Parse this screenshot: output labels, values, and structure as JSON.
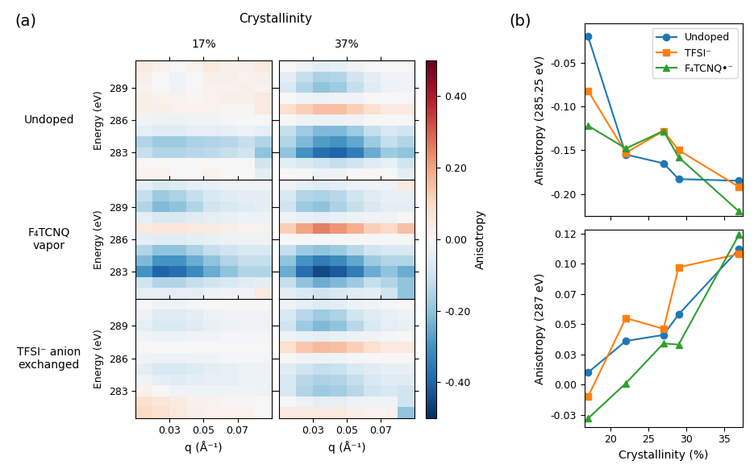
{
  "figure": {
    "panel_labels": [
      "(a)",
      "(b)"
    ]
  },
  "heatmaps": {
    "type": "heatmap",
    "header": "Crystallinity",
    "columns": [
      "17%",
      "37%"
    ],
    "rows": [
      "Undoped",
      "F₄TCNQ\nvapor",
      "TFSI⁻ anion\nexchanged"
    ],
    "x_label": "q (Å⁻¹)",
    "y_label": "Energy (eV)",
    "xlim": [
      0.01,
      0.09
    ],
    "xticks": [
      0.03,
      0.05,
      0.07
    ],
    "ylim": [
      280.5,
      291.5
    ],
    "yticks": [
      283,
      286,
      289
    ],
    "q_edges": [
      0.01,
      0.02,
      0.03,
      0.04,
      0.05,
      0.06,
      0.07,
      0.08,
      0.09
    ],
    "energy_edges": [
      280.5,
      281.5,
      282.5,
      283.5,
      284.5,
      285.5,
      286.5,
      287.5,
      288.5,
      289.5,
      290.5,
      291.5
    ],
    "colorbar": {
      "label": "Anisotropy",
      "range": [
        -0.5,
        0.5
      ],
      "ticks": [
        {
          "value": -0.4,
          "label": "-0.40"
        },
        {
          "value": -0.2,
          "label": "-0.20"
        },
        {
          "value": 0.0,
          "label": "0.00"
        },
        {
          "value": 0.2,
          "label": "0.20"
        },
        {
          "value": 0.4,
          "label": "0.40"
        }
      ]
    },
    "cells": [
      [
        [
          [
            0.02,
            0.02,
            0.0,
            0.0,
            0.02,
            0.0,
            0.0,
            -0.05
          ],
          [
            0.0,
            0.0,
            0.0,
            0.0,
            0.0,
            0.0,
            0.0,
            -0.1
          ],
          [
            -0.12,
            -0.15,
            -0.15,
            -0.14,
            -0.13,
            -0.12,
            -0.1,
            -0.2
          ],
          [
            -0.15,
            -0.18,
            -0.18,
            -0.16,
            -0.15,
            -0.14,
            -0.12,
            -0.15
          ],
          [
            -0.05,
            -0.06,
            -0.06,
            -0.05,
            -0.05,
            -0.04,
            -0.03,
            -0.05
          ],
          [
            -0.02,
            -0.03,
            -0.03,
            -0.02,
            -0.02,
            -0.01,
            0.0,
            0.0
          ],
          [
            0.03,
            0.03,
            0.02,
            0.02,
            0.02,
            0.01,
            0.01,
            0.05
          ],
          [
            0.03,
            0.02,
            0.02,
            0.01,
            0.02,
            0.03,
            0.03,
            0.05
          ],
          [
            0.02,
            0.0,
            -0.02,
            0.0,
            0.02,
            0.02,
            0.03,
            0.02
          ],
          [
            0.03,
            0.0,
            -0.02,
            0.0,
            0.03,
            0.03,
            0.02,
            0.03
          ],
          [
            0.05,
            0.02,
            0.0,
            0.02,
            0.05,
            0.03,
            0.03,
            0.05
          ]
        ],
        [
          [
            0.0,
            0.0,
            -0.02,
            -0.02,
            0.0,
            0.0,
            0.0,
            -0.05
          ],
          [
            -0.05,
            -0.08,
            -0.1,
            -0.12,
            -0.1,
            -0.06,
            -0.04,
            -0.1
          ],
          [
            -0.2,
            -0.3,
            -0.38,
            -0.4,
            -0.35,
            -0.25,
            -0.18,
            -0.2
          ],
          [
            -0.15,
            -0.22,
            -0.28,
            -0.3,
            -0.26,
            -0.18,
            -0.12,
            -0.15
          ],
          [
            -0.12,
            -0.18,
            -0.22,
            -0.22,
            -0.18,
            -0.12,
            -0.08,
            -0.1
          ],
          [
            0.0,
            -0.02,
            -0.03,
            -0.03,
            -0.02,
            0.0,
            0.0,
            0.0
          ],
          [
            0.08,
            0.12,
            0.15,
            0.15,
            0.12,
            0.08,
            0.05,
            0.05
          ],
          [
            0.0,
            -0.02,
            -0.03,
            -0.02,
            -0.02,
            0.0,
            0.0,
            0.0
          ],
          [
            -0.08,
            -0.15,
            -0.2,
            -0.18,
            -0.12,
            -0.06,
            -0.03,
            -0.02
          ],
          [
            -0.05,
            -0.12,
            -0.16,
            -0.15,
            -0.1,
            -0.05,
            -0.02,
            -0.02
          ],
          [
            0.0,
            -0.03,
            -0.05,
            -0.04,
            -0.02,
            0.0,
            0.0,
            0.0
          ]
        ]
      ],
      [
        [
          [
            -0.05,
            -0.05,
            -0.05,
            -0.05,
            -0.03,
            -0.02,
            -0.02,
            0.05
          ],
          [
            -0.1,
            -0.15,
            -0.15,
            -0.12,
            -0.1,
            -0.08,
            -0.06,
            -0.05
          ],
          [
            -0.3,
            -0.4,
            -0.38,
            -0.32,
            -0.25,
            -0.2,
            -0.15,
            -0.15
          ],
          [
            -0.22,
            -0.3,
            -0.3,
            -0.25,
            -0.2,
            -0.15,
            -0.12,
            -0.12
          ],
          [
            -0.15,
            -0.2,
            -0.2,
            -0.16,
            -0.12,
            -0.1,
            -0.08,
            -0.08
          ],
          [
            -0.05,
            -0.06,
            -0.06,
            -0.05,
            -0.04,
            -0.03,
            -0.02,
            -0.02
          ],
          [
            0.05,
            0.06,
            0.06,
            0.05,
            0.04,
            0.03,
            0.02,
            0.02
          ],
          [
            -0.05,
            -0.08,
            -0.08,
            -0.06,
            -0.05,
            -0.04,
            -0.03,
            -0.03
          ],
          [
            -0.15,
            -0.22,
            -0.2,
            -0.15,
            -0.1,
            -0.08,
            -0.06,
            -0.05
          ],
          [
            -0.12,
            -0.18,
            -0.16,
            -0.12,
            -0.08,
            -0.06,
            -0.05,
            -0.05
          ],
          [
            -0.05,
            -0.08,
            -0.07,
            -0.05,
            -0.04,
            -0.03,
            -0.02,
            -0.02
          ]
        ],
        [
          [
            -0.05,
            -0.08,
            -0.1,
            -0.08,
            -0.06,
            -0.05,
            -0.1,
            -0.2
          ],
          [
            -0.12,
            -0.2,
            -0.25,
            -0.22,
            -0.18,
            -0.12,
            -0.15,
            -0.2
          ],
          [
            -0.25,
            -0.38,
            -0.45,
            -0.42,
            -0.35,
            -0.25,
            -0.2,
            -0.25
          ],
          [
            -0.2,
            -0.3,
            -0.35,
            -0.32,
            -0.26,
            -0.18,
            -0.15,
            -0.15
          ],
          [
            -0.12,
            -0.18,
            -0.2,
            -0.18,
            -0.14,
            -0.1,
            -0.08,
            -0.08
          ],
          [
            0.0,
            0.0,
            0.0,
            0.0,
            0.0,
            0.0,
            0.0,
            0.0
          ],
          [
            0.12,
            0.2,
            0.25,
            0.22,
            0.18,
            0.12,
            0.1,
            0.15
          ],
          [
            -0.02,
            -0.04,
            -0.05,
            -0.04,
            -0.03,
            -0.02,
            -0.02,
            0.0
          ],
          [
            -0.1,
            -0.18,
            -0.2,
            -0.16,
            -0.12,
            -0.08,
            -0.05,
            -0.05
          ],
          [
            -0.08,
            -0.15,
            -0.16,
            -0.14,
            -0.1,
            -0.06,
            -0.04,
            -0.04
          ],
          [
            -0.02,
            -0.05,
            -0.06,
            -0.05,
            -0.03,
            -0.02,
            -0.02,
            0.05
          ]
        ]
      ],
      [
        [
          [
            0.1,
            0.08,
            0.05,
            0.03,
            0.02,
            0.02,
            0.02,
            0.0
          ],
          [
            0.08,
            0.06,
            0.04,
            0.02,
            0.02,
            0.01,
            0.01,
            0.0
          ],
          [
            0.02,
            0.0,
            -0.02,
            -0.02,
            -0.02,
            -0.02,
            -0.02,
            -0.03
          ],
          [
            -0.02,
            -0.05,
            -0.06,
            -0.05,
            -0.04,
            -0.04,
            -0.03,
            -0.03
          ],
          [
            -0.05,
            -0.08,
            -0.08,
            -0.07,
            -0.05,
            -0.04,
            -0.03,
            -0.03
          ],
          [
            -0.02,
            -0.03,
            -0.03,
            -0.02,
            -0.02,
            -0.01,
            -0.01,
            -0.01
          ],
          [
            0.0,
            0.0,
            0.0,
            0.0,
            0.0,
            0.0,
            0.0,
            0.0
          ],
          [
            -0.02,
            -0.03,
            -0.03,
            -0.02,
            -0.02,
            -0.01,
            -0.01,
            -0.01
          ],
          [
            -0.05,
            -0.08,
            -0.08,
            -0.06,
            -0.04,
            -0.03,
            -0.02,
            -0.02
          ],
          [
            -0.03,
            -0.06,
            -0.06,
            -0.05,
            -0.03,
            -0.02,
            -0.02,
            -0.02
          ],
          [
            0.0,
            -0.02,
            -0.02,
            -0.01,
            0.0,
            0.0,
            0.0,
            0.0
          ]
        ],
        [
          [
            0.05,
            0.05,
            0.05,
            0.05,
            0.03,
            0.02,
            0.02,
            -0.2
          ],
          [
            0.0,
            -0.03,
            -0.05,
            -0.05,
            -0.03,
            -0.02,
            -0.02,
            -0.1
          ],
          [
            -0.08,
            -0.15,
            -0.18,
            -0.17,
            -0.14,
            -0.1,
            -0.08,
            -0.1
          ],
          [
            -0.08,
            -0.14,
            -0.16,
            -0.15,
            -0.12,
            -0.08,
            -0.06,
            -0.06
          ],
          [
            -0.06,
            -0.1,
            -0.12,
            -0.11,
            -0.08,
            -0.06,
            -0.04,
            -0.04
          ],
          [
            0.0,
            -0.02,
            -0.02,
            -0.02,
            -0.01,
            0.0,
            0.0,
            0.0
          ],
          [
            0.08,
            0.14,
            0.16,
            0.15,
            0.12,
            0.08,
            0.05,
            0.05
          ],
          [
            -0.02,
            -0.04,
            -0.05,
            -0.04,
            -0.03,
            -0.02,
            -0.01,
            0.0
          ],
          [
            -0.1,
            -0.18,
            -0.22,
            -0.2,
            -0.14,
            -0.08,
            -0.05,
            -0.04
          ],
          [
            -0.08,
            -0.14,
            -0.18,
            -0.16,
            -0.1,
            -0.06,
            -0.04,
            -0.03
          ],
          [
            -0.02,
            -0.05,
            -0.06,
            -0.05,
            -0.03,
            -0.02,
            -0.01,
            0.0
          ]
        ]
      ]
    ]
  },
  "chart_data": [
    {
      "type": "line",
      "y_label": "Anisotropy (285.25 eV)",
      "tick_labels": "y",
      "legend": "upper right",
      "x": [
        17,
        22,
        27,
        29,
        37
      ],
      "xlim": [
        16.5,
        37.5
      ],
      "xticks": [
        20,
        25,
        30,
        35
      ],
      "ylim": [
        -0.225,
        -0.005
      ],
      "yticks": [
        {
          "value": -0.2,
          "label": "-0.20"
        },
        {
          "value": -0.15,
          "label": "-0.15"
        },
        {
          "value": -0.1,
          "label": "-0.10"
        },
        {
          "value": -0.05,
          "label": "-0.05"
        }
      ],
      "series": [
        {
          "name": "Undoped",
          "color": "#1f77b4",
          "marker": "circle",
          "values": [
            -0.02,
            -0.155,
            -0.165,
            -0.183,
            -0.185
          ]
        },
        {
          "name": "TFSI⁻",
          "color": "#ff7f0e",
          "marker": "square",
          "values": [
            -0.082,
            -0.153,
            -0.128,
            -0.15,
            -0.192
          ]
        },
        {
          "name": "F₄TCNQ•⁻",
          "color": "#2ca02c",
          "marker": "triangle",
          "values": [
            -0.122,
            -0.148,
            -0.128,
            -0.158,
            -0.22
          ]
        }
      ]
    },
    {
      "type": "line",
      "y_label": "Anisotropy (287 eV)",
      "x_label": "Crystallinity (%)",
      "x": [
        17,
        22,
        27,
        29,
        37
      ],
      "xlim": [
        16.5,
        37.5
      ],
      "xticks": [
        20,
        25,
        30,
        35
      ],
      "ylim": [
        -0.035,
        0.128
      ],
      "yticks": [
        {
          "value": -0.025,
          "label": "-0.03"
        },
        {
          "value": 0.0,
          "label": "0.00"
        },
        {
          "value": 0.025,
          "label": "0.03"
        },
        {
          "value": 0.05,
          "label": "0.05"
        },
        {
          "value": 0.075,
          "label": "0.07"
        },
        {
          "value": 0.1,
          "label": "0.10"
        },
        {
          "value": 0.125,
          "label": "0.12"
        }
      ],
      "series": [
        {
          "name": "Undoped",
          "color": "#1f77b4",
          "marker": "circle",
          "values": [
            0.01,
            0.036,
            0.041,
            0.058,
            0.112
          ]
        },
        {
          "name": "TFSI⁻",
          "color": "#ff7f0e",
          "marker": "square",
          "values": [
            -0.01,
            0.055,
            0.046,
            0.097,
            0.108
          ]
        },
        {
          "name": "F₄TCNQ•⁻",
          "color": "#2ca02c",
          "marker": "triangle",
          "values": [
            -0.028,
            0.001,
            0.034,
            0.033,
            0.124
          ]
        }
      ]
    }
  ]
}
